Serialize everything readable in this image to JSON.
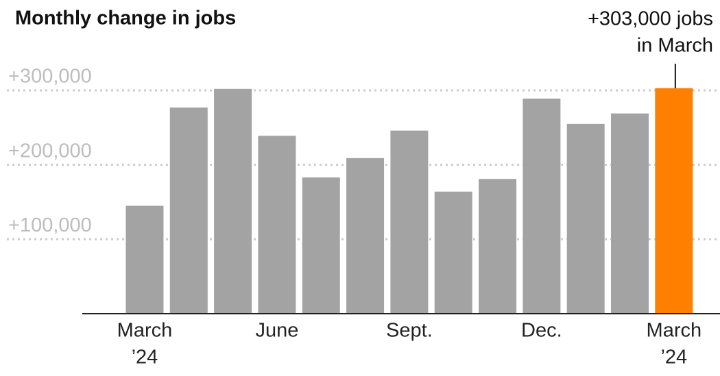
{
  "chart_data": {
    "type": "bar",
    "title": "Monthly change in jobs",
    "categories": [
      [
        "March",
        "’24"
      ],
      null,
      null,
      [
        "June"
      ],
      null,
      null,
      [
        "Sept."
      ],
      null,
      null,
      [
        "Dec."
      ],
      null,
      null,
      [
        "March",
        "’24"
      ]
    ],
    "values": [
      145000,
      277000,
      302000,
      239000,
      183000,
      209000,
      246000,
      164000,
      181000,
      289000,
      255000,
      269000,
      303000
    ],
    "colors": [
      "#a3a3a3",
      "#a3a3a3",
      "#a3a3a3",
      "#a3a3a3",
      "#a3a3a3",
      "#a3a3a3",
      "#a3a3a3",
      "#a3a3a3",
      "#a3a3a3",
      "#a3a3a3",
      "#a3a3a3",
      "#a3a3a3",
      "#ff7f00"
    ],
    "ylim": [
      0,
      340000
    ],
    "yticks": [
      {
        "value": 100000,
        "label": "+100,000"
      },
      {
        "value": 200000,
        "label": "+200,000"
      },
      {
        "value": 300000,
        "label": "+300,000"
      }
    ],
    "grid": true,
    "annotation": {
      "lines": [
        "+303,000 jobs",
        "in March"
      ],
      "index": 12
    }
  }
}
